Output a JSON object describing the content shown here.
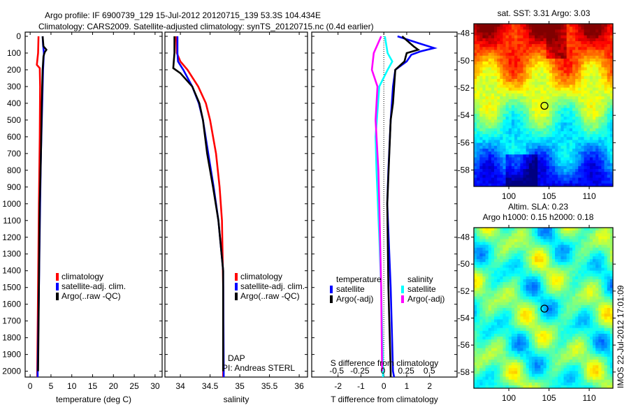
{
  "title": {
    "line1": "Argo profile: IF 6900739_129 15-Jul-2012 20120715_139 53.3S 104.434E",
    "line2": "Climatology: CARS2009. Satellite-adjusted climatology: synTS_20120715.nc (0.4d earlier)"
  },
  "colors": {
    "climatology": "#ff0000",
    "satellite": "#0000ff",
    "argo": "#000000",
    "sal_satellite": "#00ffff",
    "sal_argo": "#ff00ff"
  },
  "chart_data": [
    {
      "type": "line",
      "name": "temperature",
      "xlabel": "temperature (deg C)",
      "xlim": [
        -1.2,
        31.7
      ],
      "ylim": [
        2035,
        -25
      ],
      "xticks": [
        "0",
        "5",
        "10",
        "15",
        "20",
        "25",
        "30"
      ],
      "yticks": [
        "0",
        "100",
        "200",
        "300",
        "400",
        "500",
        "600",
        "700",
        "800",
        "900",
        "1000",
        "1100",
        "1200",
        "1300",
        "1400",
        "1500",
        "1600",
        "1700",
        "1800",
        "1900",
        "2000"
      ],
      "legend": [
        "climatology",
        "satellite-adj. clim.",
        "Argo(..raw -QC)"
      ],
      "series": [
        {
          "name": "climatology",
          "color": "#ff0000",
          "depth": [
            0,
            100,
            170,
            190,
            300,
            600,
            1000,
            1500,
            2000,
            2035
          ],
          "values": [
            2.0,
            1.9,
            1.6,
            2.3,
            2.4,
            2.3,
            2.1,
            1.9,
            1.7,
            1.7
          ]
        },
        {
          "name": "satellite-adj. clim.",
          "color": "#0000ff",
          "depth": [
            0,
            50,
            100,
            200,
            400,
            700,
            1000,
            1500,
            2000,
            2035
          ],
          "values": [
            3.0,
            3.1,
            3.3,
            3.1,
            2.9,
            2.6,
            2.4,
            2.1,
            1.8,
            1.8
          ]
        },
        {
          "name": "Argo(..raw -QC)",
          "color": "#000000",
          "depth": [
            0,
            60,
            80,
            95,
            120,
            200,
            400,
            700,
            1000,
            1500,
            2000
          ],
          "values": [
            3.0,
            3.2,
            3.9,
            3.5,
            3.2,
            3.0,
            2.8,
            2.6,
            2.3,
            2.1,
            1.9
          ]
        }
      ]
    },
    {
      "type": "line",
      "name": "salinity",
      "xlabel": "salinity",
      "xlim": [
        33.74,
        36.14
      ],
      "ylim": [
        2035,
        -25
      ],
      "xticks": [
        "34",
        "34.5",
        "35",
        "35.5",
        "36"
      ],
      "legend": [
        "climatology",
        "satellite-adj. clim.",
        "Argo(..raw -QC)"
      ],
      "annotation": [
        "DAP",
        "PI: Andreas STERL"
      ],
      "series": [
        {
          "name": "climatology",
          "color": "#ff0000",
          "depth": [
            0,
            100,
            150,
            200,
            300,
            400,
            500,
            700,
            900,
            1100,
            1500,
            2000,
            2035
          ],
          "values": [
            33.93,
            33.94,
            34.0,
            34.12,
            34.3,
            34.43,
            34.5,
            34.6,
            34.66,
            34.7,
            34.72,
            34.72,
            34.72
          ]
        },
        {
          "name": "satellite-adj. clim.",
          "color": "#0000ff",
          "depth": [
            0,
            100,
            150,
            200,
            300,
            400,
            500,
            700,
            900,
            1100,
            1400,
            2000,
            2035
          ],
          "values": [
            33.95,
            33.95,
            33.96,
            34.05,
            34.2,
            34.31,
            34.38,
            34.47,
            34.56,
            34.64,
            34.72,
            34.73,
            34.73
          ]
        },
        {
          "name": "Argo(..raw -QC)",
          "color": "#000000",
          "depth": [
            0,
            100,
            190,
            220,
            300,
            400,
            500,
            700,
            900,
            1100,
            1400,
            2000
          ],
          "values": [
            33.9,
            33.9,
            33.88,
            34.0,
            34.2,
            34.32,
            34.38,
            34.45,
            34.55,
            34.64,
            34.72,
            34.72
          ]
        }
      ]
    },
    {
      "type": "line",
      "name": "differences",
      "xlabel": "T difference from climatology",
      "x2label": "S difference from climatology",
      "xlim": [
        -3.15,
        3.2
      ],
      "x2lim": [
        -0.77,
        0.8
      ],
      "ylim": [
        2035,
        -25
      ],
      "xticks": [
        "-2",
        "-1",
        "0",
        "1",
        "2"
      ],
      "x2ticks": [
        "-0.5",
        "-0.25",
        "0",
        "0.25",
        "0.5"
      ],
      "legend": {
        "temperature_header": "temperature",
        "salinity_header": "salinity",
        "t_satellite": "satellite",
        "t_argo": "Argo(-adj)",
        "s_satellite": "satellite",
        "s_argo": "Argo(-adj)"
      },
      "series": [
        {
          "name": "T satellite",
          "axis": "T",
          "color": "#0000ff",
          "depth": [
            0,
            40,
            70,
            90,
            110,
            150,
            200,
            300,
            500,
            800,
            1000,
            1500,
            2000,
            2035
          ],
          "values": [
            0.6,
            1.5,
            2.2,
            1.6,
            1.2,
            1.0,
            0.5,
            0.4,
            0.3,
            0.2,
            0.15,
            0.3,
            0.4,
            0.45
          ]
        },
        {
          "name": "T Argo(-adj)",
          "axis": "T",
          "color": "#000000",
          "depth": [
            0,
            60,
            80,
            100,
            150,
            200,
            400,
            500,
            1000,
            1500,
            2000,
            2035
          ],
          "values": [
            0.8,
            1.3,
            1.5,
            1.0,
            0.9,
            0.5,
            0.4,
            0.3,
            0.15,
            0.2,
            0.3,
            0.3
          ]
        },
        {
          "name": "S satellite",
          "axis": "S",
          "color": "#00ffff",
          "depth": [
            0,
            100,
            150,
            200,
            300,
            600,
            800,
            1200,
            1500,
            2000,
            2035
          ],
          "values": [
            0.02,
            0.05,
            0.1,
            0.05,
            -0.04,
            -0.08,
            -0.07,
            -0.04,
            -0.02,
            0.0,
            0.0
          ]
        },
        {
          "name": "S Argo(-adj)",
          "axis": "S",
          "color": "#ff00ff",
          "depth": [
            0,
            100,
            200,
            300,
            500,
            800,
            1000,
            1500,
            2000
          ],
          "values": [
            -0.02,
            -0.1,
            -0.12,
            -0.06,
            -0.08,
            -0.05,
            -0.04,
            -0.02,
            -0.01
          ]
        }
      ]
    },
    {
      "type": "heatmap",
      "name": "sst-map",
      "title": "sat. SST: 3.31  Argo: 3.03",
      "xlim": [
        95.65,
        112.95
      ],
      "ylim": [
        -59.2,
        -47.3
      ],
      "xticks": [
        "100",
        "105",
        "110"
      ],
      "yticks": [
        "-48",
        "-50",
        "-52",
        "-54",
        "-56",
        "-58"
      ],
      "marker": {
        "lon": 104.434,
        "lat": -53.3
      }
    },
    {
      "type": "heatmap",
      "name": "sla-map",
      "title": "Altim. SLA: 0.23",
      "subtitle": "Argo h1000: 0.15 h2000: 0.18",
      "xlim": [
        95.65,
        112.95
      ],
      "ylim": [
        -59.2,
        -47.3
      ],
      "xticks": [
        "100",
        "105",
        "110"
      ],
      "yticks": [
        "-48",
        "-50",
        "-52",
        "-54",
        "-56",
        "-58"
      ],
      "marker": {
        "lon": 104.434,
        "lat": -53.3
      }
    }
  ],
  "stamp": "IMOS 22-Jul-2012 17:01:09"
}
